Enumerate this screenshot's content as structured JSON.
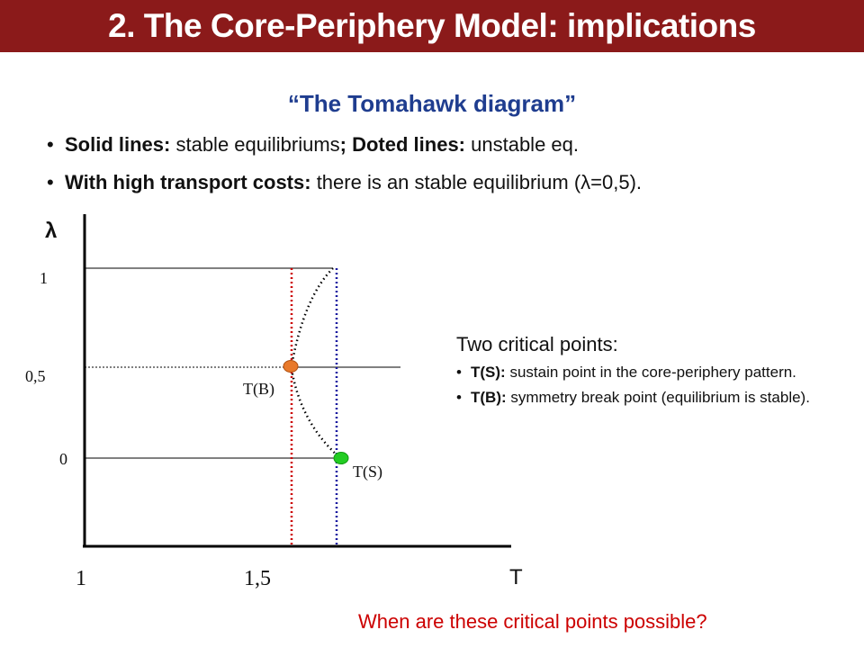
{
  "header": {
    "title": "2. The Core-Periphery Model: implications"
  },
  "subtitle": "“The Tomahawk diagram”",
  "bullets": [
    {
      "bold": "Solid lines:",
      "text": " stable equilibriums",
      "bold2": "; Doted lines:",
      "text2": " unstable eq."
    },
    {
      "bold": "With high transport costs:",
      "text": " there is an stable equilibrium (λ=0,5)."
    }
  ],
  "diagram": {
    "y_axis_label": "λ",
    "x_axis_label": "T",
    "y_ticks": [
      "1",
      "0,5",
      "0"
    ],
    "x_ticks": [
      "1",
      "1,5"
    ],
    "point_b_label": "T(B)",
    "point_s_label": "T(S)",
    "colors": {
      "point_b": "#e8792a",
      "point_s": "#22cc22",
      "line_b": "#cc0000",
      "line_s": "#1a1aa0"
    }
  },
  "critical": {
    "title": "Two critical points:",
    "items": [
      {
        "bold": "T(S):",
        "text": " sustain point in the core-periphery pattern."
      },
      {
        "bold": "T(B):",
        "text": " symmetry break point (equilibrium is stable)."
      }
    ]
  },
  "question": "When are these critical points possible?"
}
